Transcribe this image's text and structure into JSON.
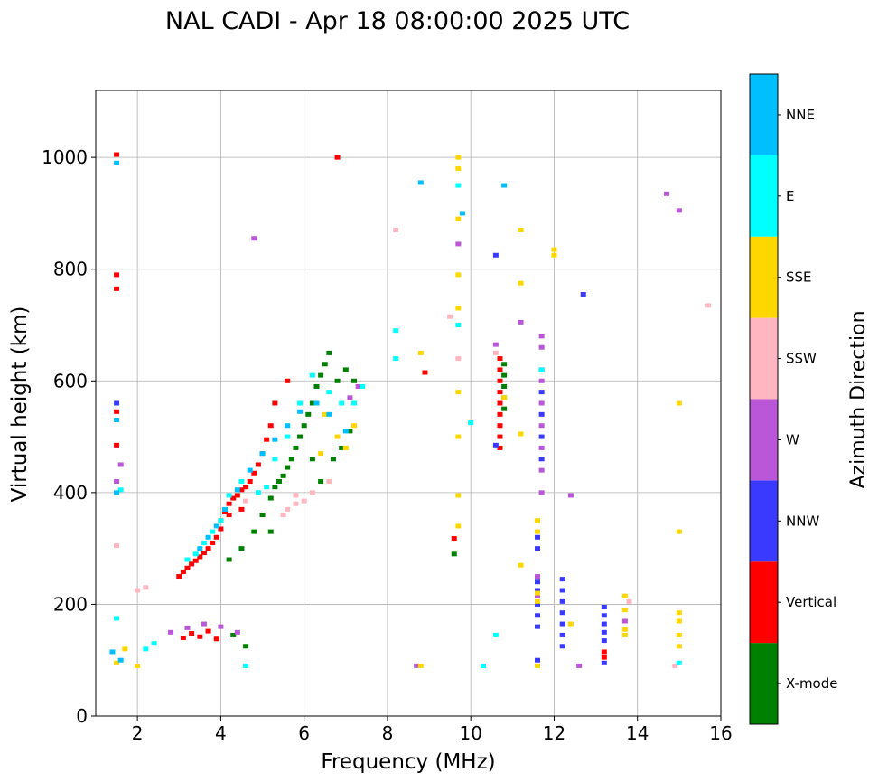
{
  "chart_data": {
    "type": "scatter",
    "title": "NAL CADI - Apr 18 08:00:00 2025 UTC",
    "xlabel": "Frequency (MHz)",
    "ylabel": "Virtual height (km)",
    "xlim": [
      1,
      16
    ],
    "ylim": [
      0,
      1120
    ],
    "xticks": [
      2,
      4,
      6,
      8,
      10,
      12,
      14,
      16
    ],
    "yticks": [
      0,
      200,
      400,
      600,
      800,
      1000
    ],
    "grid": true,
    "colorbar": {
      "title": "Azimuth Direction",
      "categories": [
        {
          "name": "X-mode",
          "color": "#008000"
        },
        {
          "name": "Vertical",
          "color": "#ff0000"
        },
        {
          "name": "NNW",
          "color": "#3a3aff"
        },
        {
          "name": "W",
          "color": "#b957d8"
        },
        {
          "name": "SSW",
          "color": "#ffb6c1"
        },
        {
          "name": "SSE",
          "color": "#ffd700"
        },
        {
          "name": "E",
          "color": "#00ffff"
        },
        {
          "name": "NNE",
          "color": "#00bfff"
        }
      ]
    },
    "series": [
      {
        "name": "Vertical",
        "points": [
          [
            1.5,
            1005
          ],
          [
            1.5,
            790
          ],
          [
            1.5,
            765
          ],
          [
            1.5,
            545
          ],
          [
            1.5,
            485
          ],
          [
            3.0,
            250
          ],
          [
            3.1,
            258
          ],
          [
            3.2,
            265
          ],
          [
            3.3,
            272
          ],
          [
            3.4,
            278
          ],
          [
            3.5,
            285
          ],
          [
            3.6,
            292
          ],
          [
            3.7,
            300
          ],
          [
            3.8,
            310
          ],
          [
            3.9,
            320
          ],
          [
            4.0,
            335
          ],
          [
            4.0,
            350
          ],
          [
            4.1,
            365
          ],
          [
            4.2,
            380
          ],
          [
            4.3,
            390
          ],
          [
            4.4,
            395
          ],
          [
            4.5,
            405
          ],
          [
            4.6,
            410
          ],
          [
            4.7,
            420
          ],
          [
            4.8,
            435
          ],
          [
            4.9,
            450
          ],
          [
            5.0,
            470
          ],
          [
            5.1,
            495
          ],
          [
            5.2,
            520
          ],
          [
            3.1,
            140
          ],
          [
            3.3,
            148
          ],
          [
            3.5,
            142
          ],
          [
            3.7,
            152
          ],
          [
            3.9,
            138
          ],
          [
            4.2,
            360
          ],
          [
            4.5,
            370
          ],
          [
            5.3,
            560
          ],
          [
            5.6,
            600
          ],
          [
            6.8,
            1000
          ],
          [
            8.9,
            615
          ],
          [
            9.6,
            318
          ],
          [
            10.7,
            480
          ],
          [
            10.7,
            500
          ],
          [
            10.7,
            520
          ],
          [
            10.7,
            540
          ],
          [
            10.7,
            560
          ],
          [
            10.7,
            580
          ],
          [
            10.7,
            600
          ],
          [
            10.7,
            620
          ],
          [
            10.7,
            640
          ],
          [
            13.2,
            115
          ],
          [
            13.2,
            105
          ]
        ]
      },
      {
        "name": "X-mode",
        "points": [
          [
            4.2,
            280
          ],
          [
            4.5,
            300
          ],
          [
            4.8,
            330
          ],
          [
            5.0,
            360
          ],
          [
            5.2,
            390
          ],
          [
            5.3,
            410
          ],
          [
            5.4,
            420
          ],
          [
            5.5,
            430
          ],
          [
            5.6,
            445
          ],
          [
            5.7,
            460
          ],
          [
            5.8,
            480
          ],
          [
            5.9,
            500
          ],
          [
            6.0,
            520
          ],
          [
            6.1,
            540
          ],
          [
            6.2,
            560
          ],
          [
            6.3,
            590
          ],
          [
            6.4,
            610
          ],
          [
            6.5,
            630
          ],
          [
            6.6,
            650
          ],
          [
            6.8,
            600
          ],
          [
            7.0,
            620
          ],
          [
            7.2,
            600
          ],
          [
            6.7,
            460
          ],
          [
            6.9,
            480
          ],
          [
            7.1,
            510
          ],
          [
            4.3,
            145
          ],
          [
            4.6,
            125
          ],
          [
            5.2,
            330
          ],
          [
            6.2,
            460
          ],
          [
            6.4,
            420
          ],
          [
            9.6,
            290
          ],
          [
            10.8,
            550
          ],
          [
            10.8,
            570
          ],
          [
            10.8,
            590
          ],
          [
            10.8,
            610
          ],
          [
            10.8,
            630
          ]
        ]
      },
      {
        "name": "NNW",
        "points": [
          [
            10.6,
            825
          ],
          [
            10.6,
            485
          ],
          [
            11.6,
            100
          ],
          [
            11.6,
            320
          ],
          [
            11.6,
            300
          ],
          [
            11.7,
            620
          ],
          [
            11.7,
            580
          ],
          [
            11.7,
            540
          ],
          [
            11.7,
            500
          ],
          [
            11.7,
            460
          ],
          [
            12.2,
            245
          ],
          [
            12.2,
            225
          ],
          [
            12.2,
            205
          ],
          [
            12.2,
            185
          ],
          [
            12.2,
            165
          ],
          [
            12.2,
            145
          ],
          [
            12.2,
            125
          ],
          [
            12.7,
            755
          ],
          [
            13.2,
            195
          ],
          [
            13.2,
            180
          ],
          [
            13.2,
            165
          ],
          [
            13.2,
            150
          ],
          [
            13.2,
            135
          ],
          [
            13.2,
            95
          ],
          [
            11.6,
            200
          ],
          [
            11.6,
            180
          ],
          [
            11.6,
            160
          ],
          [
            11.6,
            240
          ],
          [
            11.6,
            225
          ],
          [
            1.5,
            560
          ]
        ]
      },
      {
        "name": "W",
        "points": [
          [
            1.5,
            420
          ],
          [
            1.6,
            450
          ],
          [
            4.8,
            855
          ],
          [
            9.7,
            845
          ],
          [
            10.6,
            665
          ],
          [
            11.2,
            705
          ],
          [
            11.7,
            680
          ],
          [
            11.7,
            660
          ],
          [
            11.7,
            600
          ],
          [
            11.7,
            560
          ],
          [
            11.7,
            520
          ],
          [
            11.7,
            480
          ],
          [
            11.7,
            440
          ],
          [
            11.7,
            400
          ],
          [
            11.6,
            250
          ],
          [
            11.6,
            215
          ],
          [
            12.4,
            395
          ],
          [
            12.6,
            90
          ],
          [
            13.7,
            170
          ],
          [
            14.7,
            935
          ],
          [
            15.0,
            905
          ],
          [
            8.7,
            90
          ],
          [
            7.3,
            590
          ],
          [
            7.1,
            570
          ],
          [
            4.4,
            150
          ],
          [
            4.0,
            160
          ],
          [
            3.6,
            165
          ],
          [
            3.2,
            158
          ],
          [
            2.8,
            150
          ]
        ]
      },
      {
        "name": "SSW",
        "points": [
          [
            1.5,
            305
          ],
          [
            2.0,
            225
          ],
          [
            2.2,
            230
          ],
          [
            6.0,
            385
          ],
          [
            5.8,
            380
          ],
          [
            5.6,
            370
          ],
          [
            5.5,
            360
          ],
          [
            5.8,
            395
          ],
          [
            6.2,
            400
          ],
          [
            6.6,
            420
          ],
          [
            9.5,
            715
          ],
          [
            9.7,
            640
          ],
          [
            10.6,
            650
          ],
          [
            13.8,
            205
          ],
          [
            15.7,
            735
          ],
          [
            14.9,
            90
          ],
          [
            4.6,
            385
          ],
          [
            8.2,
            870
          ]
        ]
      },
      {
        "name": "SSE",
        "points": [
          [
            1.5,
            95
          ],
          [
            1.7,
            120
          ],
          [
            2.0,
            90
          ],
          [
            8.8,
            650
          ],
          [
            8.8,
            90
          ],
          [
            9.7,
            1000
          ],
          [
            9.7,
            980
          ],
          [
            9.7,
            890
          ],
          [
            9.7,
            790
          ],
          [
            9.7,
            730
          ],
          [
            9.7,
            580
          ],
          [
            9.7,
            500
          ],
          [
            9.7,
            395
          ],
          [
            9.7,
            340
          ],
          [
            10.8,
            570
          ],
          [
            11.2,
            870
          ],
          [
            11.2,
            775
          ],
          [
            11.2,
            505
          ],
          [
            11.2,
            270
          ],
          [
            11.6,
            350
          ],
          [
            11.6,
            330
          ],
          [
            11.6,
            220
          ],
          [
            11.6,
            205
          ],
          [
            11.6,
            90
          ],
          [
            12.0,
            835
          ],
          [
            12.0,
            825
          ],
          [
            12.4,
            165
          ],
          [
            13.7,
            215
          ],
          [
            13.7,
            190
          ],
          [
            13.7,
            155
          ],
          [
            13.7,
            145
          ],
          [
            15.0,
            560
          ],
          [
            15.0,
            330
          ],
          [
            15.0,
            185
          ],
          [
            15.0,
            170
          ],
          [
            15.0,
            145
          ],
          [
            15.0,
            125
          ],
          [
            6.5,
            540
          ],
          [
            6.8,
            500
          ],
          [
            7.0,
            480
          ],
          [
            7.2,
            520
          ],
          [
            6.4,
            470
          ]
        ]
      },
      {
        "name": "E",
        "points": [
          [
            1.5,
            175
          ],
          [
            1.6,
            405
          ],
          [
            3.6,
            310
          ],
          [
            3.8,
            330
          ],
          [
            4.0,
            350
          ],
          [
            4.2,
            395
          ],
          [
            4.5,
            420
          ],
          [
            4.9,
            400
          ],
          [
            5.1,
            410
          ],
          [
            5.3,
            460
          ],
          [
            5.6,
            500
          ],
          [
            5.9,
            560
          ],
          [
            6.2,
            610
          ],
          [
            6.6,
            580
          ],
          [
            6.9,
            560
          ],
          [
            7.2,
            560
          ],
          [
            7.4,
            590
          ],
          [
            8.2,
            690
          ],
          [
            8.2,
            640
          ],
          [
            9.7,
            950
          ],
          [
            9.7,
            700
          ],
          [
            10.0,
            525
          ],
          [
            10.3,
            90
          ],
          [
            10.6,
            145
          ],
          [
            11.7,
            620
          ],
          [
            3.2,
            280
          ],
          [
            3.4,
            290
          ],
          [
            4.6,
            90
          ],
          [
            15.0,
            95
          ],
          [
            2.4,
            130
          ],
          [
            2.2,
            120
          ]
        ]
      },
      {
        "name": "NNE",
        "points": [
          [
            1.5,
            990
          ],
          [
            1.5,
            530
          ],
          [
            1.5,
            400
          ],
          [
            1.4,
            115
          ],
          [
            1.6,
            100
          ],
          [
            8.8,
            955
          ],
          [
            9.8,
            900
          ],
          [
            3.5,
            300
          ],
          [
            3.7,
            320
          ],
          [
            3.9,
            340
          ],
          [
            4.1,
            370
          ],
          [
            4.4,
            405
          ],
          [
            4.7,
            440
          ],
          [
            5.0,
            470
          ],
          [
            5.3,
            495
          ],
          [
            5.6,
            520
          ],
          [
            5.9,
            545
          ],
          [
            6.3,
            560
          ],
          [
            6.6,
            540
          ],
          [
            7.0,
            510
          ],
          [
            10.8,
            950
          ]
        ]
      }
    ]
  }
}
